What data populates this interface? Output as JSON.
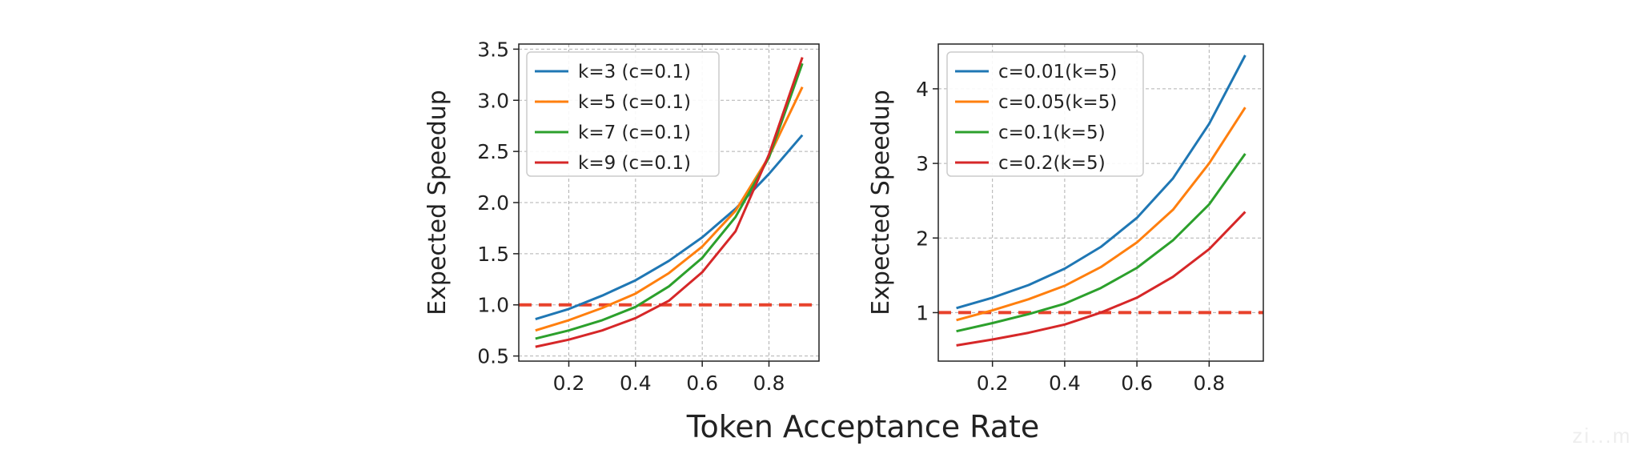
{
  "figure": {
    "shared_xlabel": "Token Acceptance Rate",
    "reference_line_color": "#e8422c",
    "watermark": "zi...m"
  },
  "chart_data": [
    {
      "type": "line",
      "title": "",
      "xlabel": "",
      "ylabel": "Expected Speedup",
      "xlim": [
        0.05,
        0.95
      ],
      "ylim": [
        0.45,
        3.55
      ],
      "xticks": [
        0.2,
        0.4,
        0.6,
        0.8
      ],
      "xtick_labels": [
        "0.2",
        "0.4",
        "0.6",
        "0.8"
      ],
      "yticks": [
        0.5,
        1.0,
        1.5,
        2.0,
        2.5,
        3.0,
        3.5
      ],
      "ytick_labels": [
        "0.5",
        "1.0",
        "1.5",
        "2.0",
        "2.5",
        "3.0",
        "3.5"
      ],
      "grid": true,
      "legend_loc": "upper-left",
      "reference_line": {
        "y": 1.0,
        "style": "dashed"
      },
      "x": [
        0.1,
        0.2,
        0.3,
        0.4,
        0.5,
        0.6,
        0.7,
        0.8,
        0.9
      ],
      "series": [
        {
          "name": "k=3 (c=0.1)",
          "color": "#1f77b4",
          "values": [
            0.86,
            0.96,
            1.09,
            1.24,
            1.43,
            1.66,
            1.94,
            2.28,
            2.66
          ]
        },
        {
          "name": "k=5 (c=0.1)",
          "color": "#ff7f0e",
          "values": [
            0.75,
            0.85,
            0.97,
            1.11,
            1.31,
            1.57,
            1.92,
            2.45,
            3.13
          ]
        },
        {
          "name": "k=7 (c=0.1)",
          "color": "#2ca02c",
          "values": [
            0.67,
            0.75,
            0.85,
            0.98,
            1.18,
            1.46,
            1.86,
            2.44,
            3.36
          ]
        },
        {
          "name": "k=9 (c=0.1)",
          "color": "#d62728",
          "values": [
            0.59,
            0.66,
            0.75,
            0.87,
            1.04,
            1.32,
            1.72,
            2.47,
            3.42
          ]
        }
      ]
    },
    {
      "type": "line",
      "title": "",
      "xlabel": "",
      "ylabel": "Expected Speedup",
      "xlim": [
        0.05,
        0.95
      ],
      "ylim": [
        0.35,
        4.6
      ],
      "xticks": [
        0.2,
        0.4,
        0.6,
        0.8
      ],
      "xtick_labels": [
        "0.2",
        "0.4",
        "0.6",
        "0.8"
      ],
      "yticks": [
        1,
        2,
        3,
        4
      ],
      "ytick_labels": [
        "1",
        "2",
        "3",
        "4"
      ],
      "grid": true,
      "legend_loc": "upper-left",
      "reference_line": {
        "y": 1.0,
        "style": "dashed"
      },
      "x": [
        0.1,
        0.2,
        0.3,
        0.4,
        0.5,
        0.6,
        0.7,
        0.8,
        0.9
      ],
      "series": [
        {
          "name": "c=0.01(k=5)",
          "color": "#1f77b4",
          "values": [
            1.06,
            1.2,
            1.37,
            1.59,
            1.88,
            2.27,
            2.8,
            3.53,
            4.45
          ]
        },
        {
          "name": "c=0.05(k=5)",
          "color": "#ff7f0e",
          "values": [
            0.9,
            1.03,
            1.18,
            1.36,
            1.61,
            1.94,
            2.38,
            3.0,
            3.75
          ]
        },
        {
          "name": "c=0.1(k=5)",
          "color": "#2ca02c",
          "values": [
            0.75,
            0.86,
            0.98,
            1.12,
            1.33,
            1.6,
            1.97,
            2.45,
            3.13
          ]
        },
        {
          "name": "c=0.2(k=5)",
          "color": "#d62728",
          "values": [
            0.56,
            0.64,
            0.73,
            0.84,
            1.0,
            1.2,
            1.48,
            1.85,
            2.35
          ]
        }
      ]
    }
  ]
}
